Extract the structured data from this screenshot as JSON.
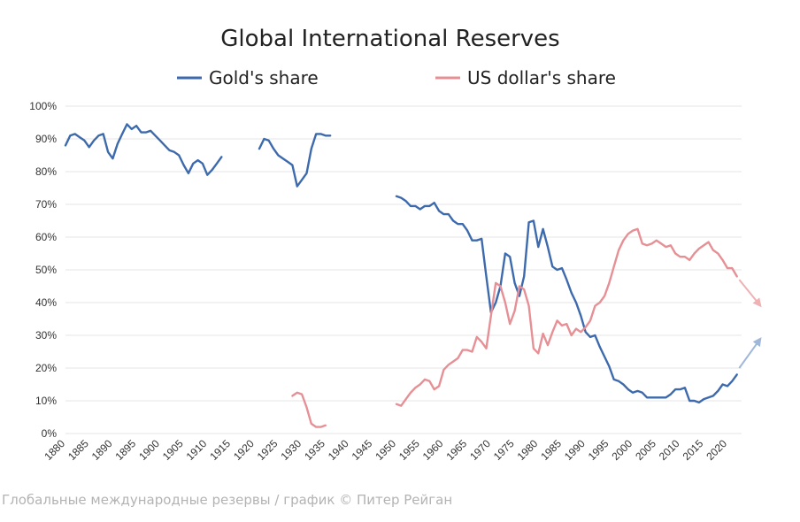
{
  "chart_data": {
    "type": "line",
    "title": "Global International Reserves",
    "xlabel": "",
    "ylabel": "",
    "xlim": [
      1880,
      2023
    ],
    "ylim": [
      0,
      100
    ],
    "y_ticks": [
      "0%",
      "10%",
      "20%",
      "30%",
      "40%",
      "50%",
      "60%",
      "70%",
      "80%",
      "90%",
      "100%"
    ],
    "x_ticks": [
      "1880",
      "1885",
      "1890",
      "1895",
      "1900",
      "1905",
      "1910",
      "1915",
      "1920",
      "1925",
      "1930",
      "1935",
      "1940",
      "1945",
      "1950",
      "1955",
      "1960",
      "1965",
      "1970",
      "1975",
      "1980",
      "1985",
      "1990",
      "1995",
      "2000",
      "2005",
      "2010",
      "2015",
      "2020"
    ],
    "grid": true,
    "legend_position": "top-center",
    "series": [
      {
        "name": "Gold's share",
        "color": "#3d6aad",
        "segments": [
          [
            [
              1880,
              88
            ],
            [
              1881,
              91
            ],
            [
              1882,
              91.5
            ],
            [
              1883,
              90.5
            ],
            [
              1884,
              89.5
            ],
            [
              1885,
              87.5
            ],
            [
              1886,
              89.5
            ],
            [
              1887,
              91
            ],
            [
              1888,
              91.5
            ],
            [
              1889,
              86
            ],
            [
              1890,
              84
            ],
            [
              1891,
              88.5
            ],
            [
              1892,
              91.5
            ],
            [
              1893,
              94.5
            ],
            [
              1894,
              93
            ],
            [
              1895,
              94
            ],
            [
              1896,
              92
            ],
            [
              1897,
              92
            ],
            [
              1898,
              92.5
            ],
            [
              1899,
              91
            ],
            [
              1900,
              89.5
            ],
            [
              1901,
              88
            ],
            [
              1902,
              86.5
            ],
            [
              1903,
              86
            ],
            [
              1904,
              85
            ],
            [
              1905,
              82
            ],
            [
              1906,
              79.5
            ],
            [
              1907,
              82.5
            ],
            [
              1908,
              83.5
            ],
            [
              1909,
              82.5
            ],
            [
              1910,
              79
            ],
            [
              1911,
              80.5
            ],
            [
              1912,
              82.5
            ],
            [
              1913,
              84.5
            ]
          ],
          [
            [
              1921,
              87
            ],
            [
              1922,
              90
            ],
            [
              1923,
              89.5
            ],
            [
              1924,
              87
            ],
            [
              1925,
              85
            ],
            [
              1926,
              84
            ],
            [
              1927,
              83
            ],
            [
              1928,
              82
            ],
            [
              1929,
              75.5
            ],
            [
              1930,
              77.5
            ],
            [
              1931,
              79.5
            ],
            [
              1932,
              87
            ],
            [
              1933,
              91.5
            ],
            [
              1934,
              91.5
            ],
            [
              1935,
              91
            ],
            [
              1936,
              91
            ]
          ],
          [
            [
              1950,
              72.5
            ],
            [
              1951,
              72
            ],
            [
              1952,
              71
            ],
            [
              1953,
              69.5
            ],
            [
              1954,
              69.5
            ],
            [
              1955,
              68.5
            ],
            [
              1956,
              69.5
            ],
            [
              1957,
              69.5
            ],
            [
              1958,
              70.5
            ],
            [
              1959,
              68
            ],
            [
              1960,
              67
            ],
            [
              1961,
              67
            ],
            [
              1962,
              65
            ],
            [
              1963,
              64
            ],
            [
              1964,
              64
            ],
            [
              1965,
              62
            ],
            [
              1966,
              59
            ],
            [
              1967,
              59
            ],
            [
              1968,
              59.5
            ],
            [
              1969,
              48
            ],
            [
              1970,
              37
            ],
            [
              1971,
              40
            ],
            [
              1972,
              45
            ],
            [
              1973,
              55
            ],
            [
              1974,
              54
            ],
            [
              1975,
              46
            ],
            [
              1976,
              42
            ],
            [
              1977,
              48
            ],
            [
              1978,
              64.5
            ],
            [
              1979,
              65
            ],
            [
              1980,
              57
            ],
            [
              1981,
              62.5
            ],
            [
              1982,
              57
            ],
            [
              1983,
              51
            ],
            [
              1984,
              50
            ],
            [
              1985,
              50.5
            ],
            [
              1986,
              47
            ],
            [
              1987,
              43
            ],
            [
              1988,
              40
            ],
            [
              1989,
              36
            ],
            [
              1990,
              31
            ],
            [
              1991,
              29.5
            ],
            [
              1992,
              30
            ],
            [
              1993,
              26.5
            ],
            [
              1994,
              23.5
            ],
            [
              1995,
              20.5
            ],
            [
              1996,
              16.5
            ],
            [
              1997,
              16
            ],
            [
              1998,
              15
            ],
            [
              1999,
              13.5
            ],
            [
              2000,
              12.5
            ],
            [
              2001,
              13
            ],
            [
              2002,
              12.5
            ],
            [
              2003,
              11
            ],
            [
              2004,
              11
            ],
            [
              2005,
              11
            ],
            [
              2006,
              11
            ],
            [
              2007,
              11
            ],
            [
              2008,
              12
            ],
            [
              2009,
              13.5
            ],
            [
              2010,
              13.5
            ],
            [
              2011,
              14
            ],
            [
              2012,
              10
            ],
            [
              2013,
              10
            ],
            [
              2014,
              9.5
            ],
            [
              2015,
              10.5
            ],
            [
              2016,
              11
            ],
            [
              2017,
              11.5
            ],
            [
              2018,
              13
            ],
            [
              2019,
              15
            ],
            [
              2020,
              14.5
            ],
            [
              2021,
              16
            ],
            [
              2022,
              18
            ]
          ]
        ]
      },
      {
        "name": "US dollar's share",
        "color": "#e69096",
        "segments": [
          [
            [
              1928,
              11.5
            ],
            [
              1929,
              12.5
            ],
            [
              1930,
              12
            ],
            [
              1931,
              8
            ],
            [
              1932,
              3
            ],
            [
              1933,
              2
            ],
            [
              1934,
              2
            ],
            [
              1935,
              2.5
            ]
          ],
          [
            [
              1950,
              9
            ],
            [
              1951,
              8.5
            ],
            [
              1952,
              10.5
            ],
            [
              1953,
              12.5
            ],
            [
              1954,
              14
            ],
            [
              1955,
              15
            ],
            [
              1956,
              16.5
            ],
            [
              1957,
              16
            ],
            [
              1958,
              13.5
            ],
            [
              1959,
              14.5
            ],
            [
              1960,
              19.5
            ],
            [
              1961,
              21
            ],
            [
              1962,
              22
            ],
            [
              1963,
              23
            ],
            [
              1964,
              25.5
            ],
            [
              1965,
              25.5
            ],
            [
              1966,
              25
            ],
            [
              1967,
              29.5
            ],
            [
              1968,
              28
            ],
            [
              1969,
              26
            ],
            [
              1970,
              36
            ],
            [
              1971,
              46
            ],
            [
              1972,
              45
            ],
            [
              1973,
              40
            ],
            [
              1974,
              33.5
            ],
            [
              1975,
              37.5
            ],
            [
              1976,
              45
            ],
            [
              1977,
              44
            ],
            [
              1978,
              39
            ],
            [
              1979,
              26
            ],
            [
              1980,
              24.5
            ],
            [
              1981,
              30.5
            ],
            [
              1982,
              27
            ],
            [
              1983,
              31
            ],
            [
              1984,
              34.5
            ],
            [
              1985,
              33
            ],
            [
              1986,
              33.5
            ],
            [
              1987,
              30
            ],
            [
              1988,
              32
            ],
            [
              1989,
              31
            ],
            [
              1990,
              32.5
            ],
            [
              1991,
              34.5
            ],
            [
              1992,
              39
            ],
            [
              1993,
              40
            ],
            [
              1994,
              42
            ],
            [
              1995,
              46
            ],
            [
              1996,
              51
            ],
            [
              1997,
              56
            ],
            [
              1998,
              59
            ],
            [
              1999,
              61
            ],
            [
              2000,
              62
            ],
            [
              2001,
              62.5
            ],
            [
              2002,
              58
            ],
            [
              2003,
              57.5
            ],
            [
              2004,
              58
            ],
            [
              2005,
              59
            ],
            [
              2006,
              58
            ],
            [
              2007,
              57
            ],
            [
              2008,
              57.5
            ],
            [
              2009,
              55
            ],
            [
              2010,
              54
            ],
            [
              2011,
              54
            ],
            [
              2012,
              53
            ],
            [
              2013,
              55
            ],
            [
              2014,
              56.5
            ],
            [
              2015,
              57.5
            ],
            [
              2016,
              58.5
            ],
            [
              2017,
              56
            ],
            [
              2018,
              55
            ],
            [
              2019,
              53
            ],
            [
              2020,
              50.5
            ],
            [
              2021,
              50.5
            ],
            [
              2022,
              48
            ]
          ]
        ]
      }
    ],
    "trend_arrows": [
      {
        "series": "US dollar's share",
        "from": [
          2022.5,
          47
        ],
        "to": [
          2027,
          39
        ],
        "color": "#efb1b4"
      },
      {
        "series": "Gold's share",
        "from": [
          2022.5,
          20
        ],
        "to": [
          2027,
          29
        ],
        "color": "#9fb8da"
      }
    ]
  },
  "caption": "Глобальные международные резервы / график © Питер Рейган"
}
